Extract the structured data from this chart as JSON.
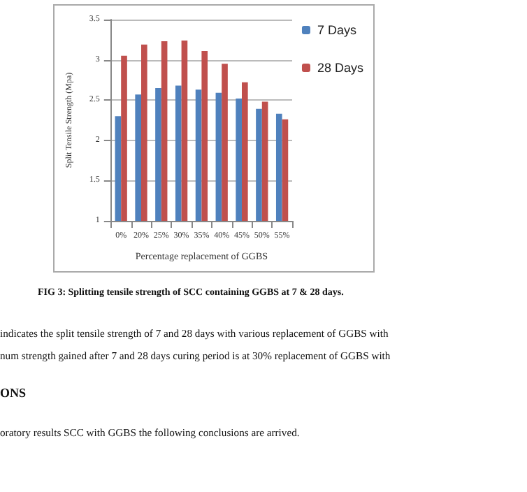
{
  "chart_data": {
    "type": "bar",
    "categories": [
      "0%",
      "20%",
      "25%",
      "30%",
      "35%",
      "40%",
      "45%",
      "50%",
      "55%"
    ],
    "series": [
      {
        "name": "7 Days",
        "color": "#4f81bd",
        "values": [
          2.3,
          2.57,
          2.65,
          2.68,
          2.63,
          2.59,
          2.52,
          2.39,
          2.33
        ]
      },
      {
        "name": "28 Days",
        "color": "#c0504d",
        "values": [
          3.05,
          3.19,
          3.23,
          3.24,
          3.11,
          2.95,
          2.72,
          2.48,
          2.26
        ]
      }
    ],
    "xlabel": "Percentage replacement of GGBS",
    "ylabel": "Split Tensile Strength (Mpa)",
    "ylim": [
      1,
      3.5
    ],
    "yticks": [
      1,
      1.5,
      2,
      2.5,
      3,
      3.5
    ],
    "grid": "y",
    "legend": "right",
    "annotations": [
      "FIG 3: Splitting tensile strength of SCC containing GGBS at  7 & 28 days.",
      "indicates the split tensile strength of 7 and 28 days with various replacement of GGBS with",
      "num strength gained after 7 and 28 days curing period is at 30%  replacement of GGBS with",
      "ONS",
      "oratory results SCC with GGBS the following conclusions are arrived."
    ]
  }
}
